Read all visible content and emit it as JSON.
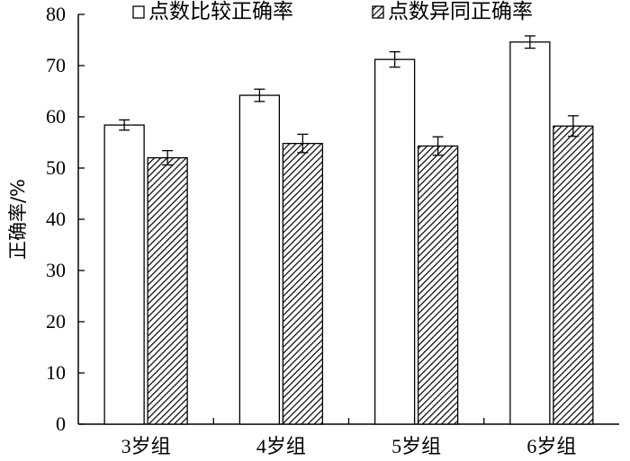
{
  "chart_data": {
    "type": "bar",
    "title": "",
    "xlabel": "",
    "ylabel": "正确率/%",
    "ylim": [
      0,
      80
    ],
    "yticks": [
      0,
      10,
      20,
      30,
      40,
      50,
      60,
      70,
      80
    ],
    "categories": [
      "3岁组",
      "4岁组",
      "5岁组",
      "6岁组"
    ],
    "series": [
      {
        "name": "点数比较正确率",
        "values": [
          58.4,
          64.2,
          71.2,
          74.6
        ],
        "errors": [
          1.0,
          1.2,
          1.5,
          1.2
        ],
        "fill": "white"
      },
      {
        "name": "点数异同正确率",
        "values": [
          52.0,
          54.8,
          54.3,
          58.2
        ],
        "errors": [
          1.4,
          1.8,
          1.8,
          2.0
        ],
        "fill": "hatched"
      }
    ],
    "grid": false,
    "legend_position": "top"
  }
}
